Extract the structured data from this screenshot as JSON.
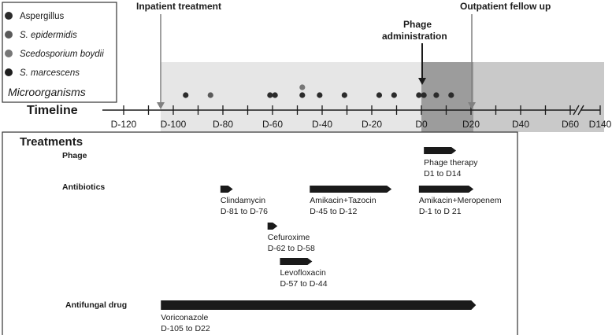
{
  "legend": {
    "title": "Microorganisms",
    "items": [
      {
        "label": "Aspergillus",
        "italic": false,
        "color": "#2b2b2b"
      },
      {
        "label": "S. epidermidis",
        "italic": true,
        "color": "#555555"
      },
      {
        "label": "Scedosporium boydii",
        "italic": true,
        "color": "#777777"
      },
      {
        "label": "S. marcescens",
        "italic": true,
        "color": "#1e1e1e"
      }
    ]
  },
  "timeline": {
    "label": "Timeline",
    "ticks": [
      "D-120",
      "D-100",
      "D-80",
      "D-60",
      "D-40",
      "D-20",
      "D0",
      "D20",
      "D40",
      "D60",
      "D140"
    ]
  },
  "phases": {
    "inpatient": "Inpatient treatment",
    "phage_line1": "Phage",
    "phage_line2": "administration",
    "outpatient": "Outpatient fellow up"
  },
  "isolates": [
    {
      "day": -95,
      "org": "Aspergillus"
    },
    {
      "day": -85,
      "org": "S. epidermidis"
    },
    {
      "day": -61,
      "org": "Aspergillus"
    },
    {
      "day": -59,
      "org": "Aspergillus"
    },
    {
      "day": -48,
      "org": "Aspergillus"
    },
    {
      "day": -48,
      "org": "Scedosporium boydii"
    },
    {
      "day": -41,
      "org": "Aspergillus"
    },
    {
      "day": -31,
      "org": "Aspergillus"
    },
    {
      "day": -17,
      "org": "Aspergillus"
    },
    {
      "day": -11,
      "org": "Aspergillus"
    },
    {
      "day": -1,
      "org": "Aspergillus"
    },
    {
      "day": 1,
      "org": "Aspergillus"
    },
    {
      "day": 6,
      "org": "Aspergillus"
    },
    {
      "day": 12,
      "org": "Aspergillus"
    }
  ],
  "treatments": {
    "title": "Treatments",
    "categories": [
      "Phage",
      "Antibiotics",
      "Antifungal drug"
    ],
    "bars": [
      {
        "category": "Phage",
        "name": "Phage therapy",
        "range": "D1 to D14",
        "start": 1,
        "end": 14
      },
      {
        "category": "Antibiotics",
        "name": "Clindamycin",
        "range": "D-81 to D-76",
        "start": -81,
        "end": -76
      },
      {
        "category": "Antibiotics",
        "name": "Amikacin+Tazocin",
        "range": "D-45 to D-12",
        "start": -45,
        "end": -12
      },
      {
        "category": "Antibiotics",
        "name": "Amikacin+Meropenem",
        "range": "D-1 to D 21",
        "start": -1,
        "end": 21
      },
      {
        "category": "Antibiotics",
        "name": "Cefuroxime",
        "range": "D-62 to D-58",
        "start": -62,
        "end": -58
      },
      {
        "category": "Antibiotics",
        "name": "Levofloxacin",
        "range": "D-57 to D-44",
        "start": -57,
        "end": -44
      },
      {
        "category": "Antifungal drug",
        "name": "Voriconazole",
        "range": "D-105 to D22",
        "start": -105,
        "end": 22
      }
    ]
  },
  "colors": {
    "inpatient_shade": "#e6e6e6",
    "phage_shade": "#9c9c9c",
    "outpatient_shade": "#c9c9c9",
    "bar": "#1a1a1a",
    "dot": "#2b2b2b"
  }
}
